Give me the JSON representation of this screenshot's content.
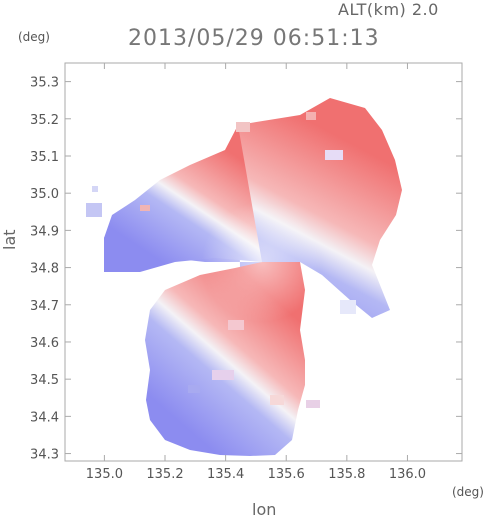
{
  "header": {
    "alt_label": "ALT(km) 2.0",
    "timestamp": "2013/05/29 06:51:13"
  },
  "chart_data": {
    "type": "heatmap",
    "title": "2013/05/29 06:51:13",
    "xlabel": "lon",
    "ylabel": "lat",
    "x_unit": "(deg)",
    "y_unit": "(deg)",
    "xlim": [
      134.87,
      136.18
    ],
    "ylim": [
      34.28,
      35.35
    ],
    "xticks": [
      "135.0",
      "135.2",
      "135.4",
      "135.6",
      "135.8",
      "136.0"
    ],
    "yticks": [
      "34.3",
      "34.4",
      "34.5",
      "34.6",
      "34.7",
      "34.8",
      "34.9",
      "35.0",
      "35.1",
      "35.2",
      "35.3"
    ],
    "radar_center": [
      135.52,
      34.82
    ],
    "colors": {
      "positive": "#f07878",
      "negative": "#8c8cf0",
      "neutral": "#ffffff",
      "axis": "#aaaaaa"
    },
    "grid": false,
    "legend": "none"
  }
}
